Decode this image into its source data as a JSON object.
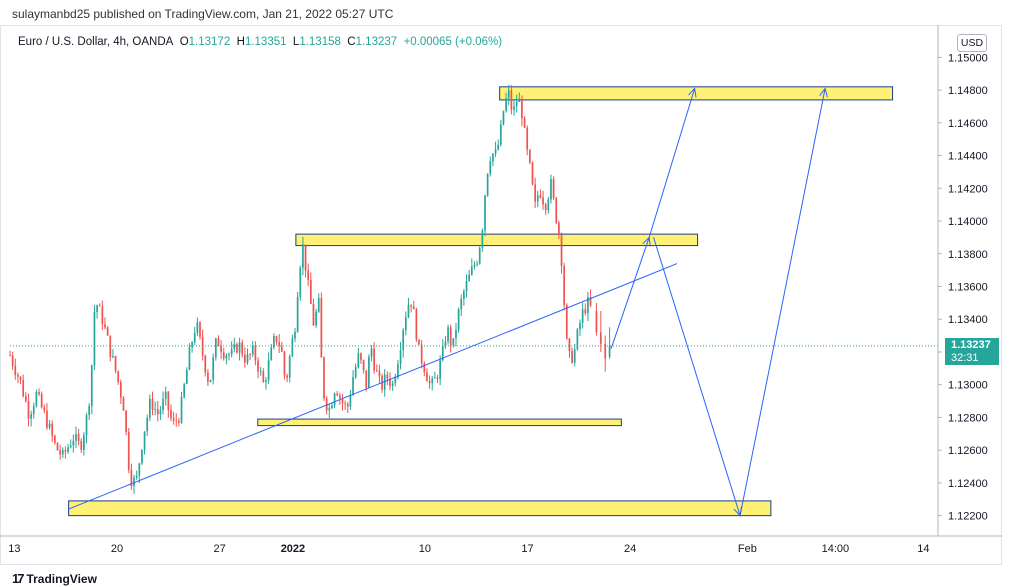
{
  "header": {
    "published_line": "sulaymanbd25 published on TradingView.com, Jan 21, 2022 05:27 UTC"
  },
  "symbol": {
    "name": "Euro / U.S. Dollar, 4h, OANDA",
    "open_label": "O",
    "open": "1.13172",
    "high_label": "H",
    "high": "1.13351",
    "low_label": "L",
    "low": "1.13158",
    "close_label": "C",
    "close": "1.13237",
    "change": "+0.00065 (+0.06%)"
  },
  "currency_button": "USD",
  "price_tag": {
    "price": "1.13237",
    "countdown": "32:31"
  },
  "footer": {
    "logo_mark": "17",
    "brand": "TradingView"
  },
  "colors": {
    "up": "#26a69a",
    "down": "#ef5350",
    "zone_fill": "#fff176",
    "zone_stroke": "#1e3a8a",
    "drawing": "#2962ff"
  },
  "chart_data": {
    "type": "candlestick",
    "title": "Euro / U.S. Dollar, 4h, OANDA",
    "ylim": [
      1.121,
      1.151
    ],
    "y_ticks": [
      "1.15000",
      "1.14800",
      "1.14600",
      "1.14400",
      "1.14200",
      "1.14000",
      "1.13800",
      "1.13600",
      "1.13400",
      "1.13200",
      "1.13000",
      "1.12800",
      "1.12600",
      "1.12400",
      "1.12200"
    ],
    "x_ticks": [
      {
        "label": "13",
        "day": 0
      },
      {
        "label": "20",
        "day": 7
      },
      {
        "label": "27",
        "day": 14
      },
      {
        "label": "2022",
        "day": 19
      },
      {
        "label": "10",
        "day": 28
      },
      {
        "label": "17",
        "day": 35
      },
      {
        "label": "24",
        "day": 42
      },
      {
        "label": "Feb",
        "day": 50
      },
      {
        "label": "14:00",
        "day": 56
      },
      {
        "label": "14",
        "day": 62
      }
    ],
    "x_range_days": [
      -0.3,
      63
    ],
    "last_candle_day": 39.4,
    "price_path": [
      [
        -0.3,
        1.1318
      ],
      [
        0.4,
        1.1302
      ],
      [
        1.0,
        1.1282
      ],
      [
        1.5,
        1.1294
      ],
      [
        2.2,
        1.1278
      ],
      [
        2.8,
        1.1262
      ],
      [
        3.3,
        1.1256
      ],
      [
        4.0,
        1.1268
      ],
      [
        4.5,
        1.1262
      ],
      [
        4.9,
        1.1278
      ],
      [
        5.2,
        1.1298
      ],
      [
        5.5,
        1.1352
      ],
      [
        6.0,
        1.134
      ],
      [
        6.5,
        1.1322
      ],
      [
        7.0,
        1.1305
      ],
      [
        7.5,
        1.1285
      ],
      [
        7.7,
        1.126
      ],
      [
        7.9,
        1.1243
      ],
      [
        8.3,
        1.124
      ],
      [
        8.8,
        1.127
      ],
      [
        9.3,
        1.129
      ],
      [
        9.8,
        1.1282
      ],
      [
        10.3,
        1.1292
      ],
      [
        10.8,
        1.1275
      ],
      [
        11.3,
        1.1282
      ],
      [
        11.6,
        1.13
      ],
      [
        12.0,
        1.1322
      ],
      [
        12.4,
        1.1338
      ],
      [
        12.8,
        1.132
      ],
      [
        13.3,
        1.13
      ],
      [
        13.8,
        1.1328
      ],
      [
        14.3,
        1.132
      ],
      [
        14.8,
        1.1318
      ],
      [
        15.3,
        1.1325
      ],
      [
        15.8,
        1.1315
      ],
      [
        16.3,
        1.132
      ],
      [
        16.6,
        1.1312
      ],
      [
        17.0,
        1.13
      ],
      [
        17.4,
        1.1315
      ],
      [
        17.8,
        1.133
      ],
      [
        18.2,
        1.1322
      ],
      [
        18.5,
        1.13
      ],
      [
        18.8,
        1.1318
      ],
      [
        19.2,
        1.134
      ],
      [
        19.4,
        1.137
      ],
      [
        19.7,
        1.1385
      ],
      [
        20.0,
        1.1362
      ],
      [
        20.4,
        1.1338
      ],
      [
        20.8,
        1.135
      ],
      [
        21.0,
        1.13
      ],
      [
        21.2,
        1.129
      ],
      [
        21.5,
        1.1285
      ],
      [
        21.9,
        1.13
      ],
      [
        22.3,
        1.129
      ],
      [
        22.7,
        1.1285
      ],
      [
        23.1,
        1.1305
      ],
      [
        23.5,
        1.1318
      ],
      [
        24.0,
        1.13
      ],
      [
        24.3,
        1.1325
      ],
      [
        24.6,
        1.131
      ],
      [
        25.0,
        1.1298
      ],
      [
        25.4,
        1.1305
      ],
      [
        25.8,
        1.13
      ],
      [
        26.2,
        1.1318
      ],
      [
        26.6,
        1.134
      ],
      [
        27.0,
        1.1354
      ],
      [
        27.3,
        1.134
      ],
      [
        27.6,
        1.132
      ],
      [
        28.0,
        1.131
      ],
      [
        28.4,
        1.1298
      ],
      [
        28.8,
        1.1305
      ],
      [
        29.2,
        1.1318
      ],
      [
        29.5,
        1.1335
      ],
      [
        29.9,
        1.1322
      ],
      [
        30.2,
        1.134
      ],
      [
        30.6,
        1.1355
      ],
      [
        31.0,
        1.1365
      ],
      [
        31.3,
        1.1372
      ],
      [
        31.6,
        1.1378
      ],
      [
        31.9,
        1.1395
      ],
      [
        32.2,
        1.1428
      ],
      [
        32.5,
        1.1442
      ],
      [
        32.8,
        1.144
      ],
      [
        33.1,
        1.145
      ],
      [
        33.4,
        1.147
      ],
      [
        33.7,
        1.1478
      ],
      [
        34.0,
        1.1465
      ],
      [
        34.3,
        1.1475
      ],
      [
        34.6,
        1.1468
      ],
      [
        34.9,
        1.1445
      ],
      [
        35.2,
        1.143
      ],
      [
        35.5,
        1.1408
      ],
      [
        35.8,
        1.142
      ],
      [
        36.2,
        1.141
      ],
      [
        36.6,
        1.1422
      ],
      [
        36.9,
        1.1405
      ],
      [
        37.1,
        1.1396
      ],
      [
        37.3,
        1.138
      ],
      [
        37.5,
        1.135
      ],
      [
        37.7,
        1.1322
      ],
      [
        37.9,
        1.1315
      ],
      [
        38.2,
        1.132
      ],
      [
        38.5,
        1.1335
      ],
      [
        38.8,
        1.1345
      ],
      [
        39.1,
        1.135
      ],
      [
        39.4,
        1.1345
      ]
    ],
    "final_candles": [
      {
        "day": 39.7,
        "open": 1.1345,
        "high": 1.135,
        "low": 1.133,
        "close": 1.1332
      },
      {
        "day": 40.0,
        "open": 1.1332,
        "high": 1.1345,
        "low": 1.132,
        "close": 1.1325
      },
      {
        "day": 40.3,
        "open": 1.1325,
        "high": 1.133,
        "low": 1.1308,
        "close": 1.1316
      },
      {
        "day": 40.6,
        "open": 1.13172,
        "high": 1.13351,
        "low": 1.13158,
        "close": 1.13237
      }
    ],
    "zones": [
      {
        "d0": 33.1,
        "d1": 59.9,
        "hi": 1.1482,
        "lo": 1.1474
      },
      {
        "d0": 19.2,
        "d1": 46.6,
        "hi": 1.1392,
        "lo": 1.1385
      },
      {
        "d0": 16.6,
        "d1": 41.4,
        "hi": 1.1279,
        "lo": 1.1275
      },
      {
        "d0": 3.7,
        "d1": 51.6,
        "hi": 1.1229,
        "lo": 1.122
      }
    ],
    "trendline": [
      [
        3.7,
        1.1224
      ],
      [
        45.2,
        1.1374
      ]
    ],
    "projections": [
      [
        [
          40.7,
          1.1322
        ],
        [
          43.3,
          1.139
        ],
        [
          46.4,
          1.1481
        ]
      ],
      [
        [
          43.6,
          1.139
        ],
        [
          49.5,
          1.122
        ],
        [
          55.3,
          1.1481
        ]
      ]
    ],
    "current_price": 1.13237
  }
}
